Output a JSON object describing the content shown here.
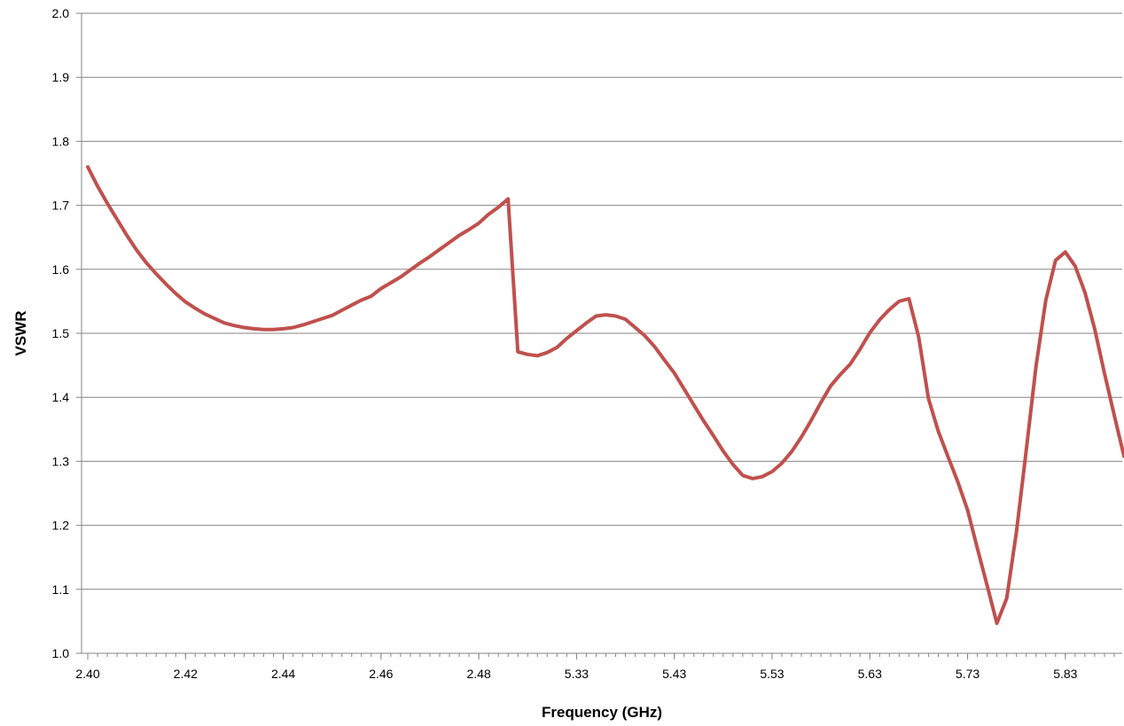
{
  "chart_data": {
    "type": "line",
    "title": "",
    "xlabel": "Frequency (GHz)",
    "ylabel": "VSWR",
    "ylim": [
      1.0,
      2.0
    ],
    "y_ticks": [
      "1.0",
      "1.1",
      "1.2",
      "1.3",
      "1.4",
      "1.5",
      "1.6",
      "1.7",
      "1.8",
      "1.9",
      "2.0"
    ],
    "x_ticks": [
      "2.40",
      "2.42",
      "2.44",
      "2.46",
      "2.48",
      "5.33",
      "5.43",
      "5.53",
      "5.63",
      "5.73",
      "5.83"
    ],
    "grid": "horizontal",
    "legend": "none",
    "series": [
      {
        "color": "#c0504d",
        "values": [
          1.76,
          1.73,
          1.703,
          1.678,
          1.653,
          1.63,
          1.61,
          1.593,
          1.577,
          1.562,
          1.549,
          1.539,
          1.53,
          1.523,
          1.516,
          1.512,
          1.509,
          1.507,
          1.506,
          1.506,
          1.507,
          1.509,
          1.513,
          1.518,
          1.523,
          1.528,
          1.536,
          1.544,
          1.552,
          1.558,
          1.57,
          1.579,
          1.588,
          1.599,
          1.61,
          1.62,
          1.631,
          1.642,
          1.653,
          1.662,
          1.672,
          1.686,
          1.697,
          1.71,
          1.471,
          1.467,
          1.465,
          1.47,
          1.478,
          1.492,
          1.504,
          1.516,
          1.527,
          1.529,
          1.527,
          1.522,
          1.509,
          1.496,
          1.479,
          1.458,
          1.438,
          1.413,
          1.388,
          1.363,
          1.34,
          1.316,
          1.295,
          1.278,
          1.273,
          1.276,
          1.284,
          1.297,
          1.315,
          1.338,
          1.364,
          1.392,
          1.418,
          1.436,
          1.452,
          1.475,
          1.501,
          1.521,
          1.537,
          1.55,
          1.554,
          1.494,
          1.398,
          1.347,
          1.307,
          1.268,
          1.224,
          1.164,
          1.106,
          1.047,
          1.086,
          1.19,
          1.317,
          1.448,
          1.552,
          1.614,
          1.627,
          1.605,
          1.564,
          1.507,
          1.438,
          1.372,
          1.308
        ]
      }
    ]
  }
}
